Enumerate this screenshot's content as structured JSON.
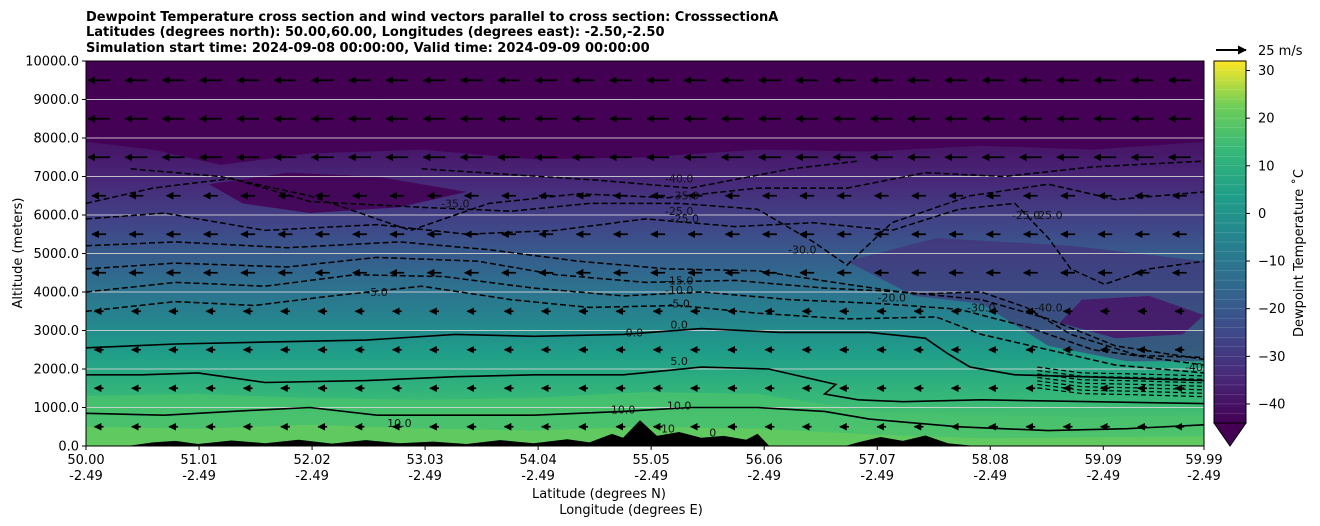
{
  "chart_data": {
    "type": "contour",
    "title_lines": [
      "Dewpoint Temperature cross section and wind vectors parallel to cross section: CrosssectionA",
      "Latitudes (degrees north): 50.00,60.00, Longitudes (degrees east): -2.50,-2.50",
      "Simulation start time: 2024-09-08 00:00:00, Valid time: 2024-09-09 00:00:00"
    ],
    "ylabel": "Altitude (meters)",
    "xlabel_line1": "Latitude (degrees N)",
    "xlabel_line2": "Longitude (degrees E)",
    "ylim": [
      0,
      10000
    ],
    "y_ticks": [
      "0.0",
      "1000.0",
      "2000.0",
      "3000.0",
      "4000.0",
      "5000.0",
      "6000.0",
      "7000.0",
      "8000.0",
      "9000.0",
      "10000.0"
    ],
    "x_range": [
      50.0,
      59.99
    ],
    "x_ticks": [
      {
        "lat": "50.00",
        "lon": "-2.49"
      },
      {
        "lat": "51.01",
        "lon": "-2.49"
      },
      {
        "lat": "52.02",
        "lon": "-2.49"
      },
      {
        "lat": "53.03",
        "lon": "-2.49"
      },
      {
        "lat": "54.04",
        "lon": "-2.49"
      },
      {
        "lat": "55.05",
        "lon": "-2.49"
      },
      {
        "lat": "56.06",
        "lon": "-2.49"
      },
      {
        "lat": "57.07",
        "lon": "-2.49"
      },
      {
        "lat": "58.08",
        "lon": "-2.49"
      },
      {
        "lat": "59.09",
        "lon": "-2.49"
      },
      {
        "lat": "59.99",
        "lon": "-2.49"
      }
    ],
    "grid": "horizontal",
    "colorbar": {
      "label": "Dewpoint Temperature ˚C",
      "range": [
        -44,
        32
      ],
      "ticks": [
        "−40",
        "−30",
        "−20",
        "−10",
        "0",
        "10",
        "20",
        "30"
      ],
      "colormap": "viridis",
      "extend": "min"
    },
    "quiver_key": {
      "label": "25 m/s"
    },
    "wind_vector_direction": "toward lower latitude",
    "contour_levels_labeled": [
      {
        "label": "-40.0",
        "lat": 55.3,
        "alt": 6850
      },
      {
        "label": "-35.0",
        "lat": 55.35,
        "alt": 6400
      },
      {
        "label": "-35.0",
        "lat": 53.3,
        "alt": 6200
      },
      {
        "label": "-25.0",
        "lat": 55.3,
        "alt": 6000
      },
      {
        "label": "-25.0",
        "lat": 55.35,
        "alt": 5800
      },
      {
        "label": "-25.0",
        "lat": 58.4,
        "alt": 5900
      },
      {
        "label": "-25.0",
        "lat": 58.6,
        "alt": 5900
      },
      {
        "label": "-30.0",
        "lat": 56.4,
        "alt": 5000
      },
      {
        "label": "-15.0",
        "lat": 55.3,
        "alt": 4200
      },
      {
        "label": "-10.0",
        "lat": 55.3,
        "alt": 3950
      },
      {
        "label": "-5.0",
        "lat": 55.3,
        "alt": 3600
      },
      {
        "label": "-5.0",
        "lat": 52.6,
        "alt": 3900
      },
      {
        "label": "-20.0",
        "lat": 57.2,
        "alt": 3750
      },
      {
        "label": "-30.0",
        "lat": 58.0,
        "alt": 3500
      },
      {
        "label": "-40.0",
        "lat": 58.6,
        "alt": 3500
      },
      {
        "label": "0.0",
        "lat": 55.3,
        "alt": 3050
      },
      {
        "label": "0.0",
        "lat": 54.9,
        "alt": 2850
      },
      {
        "label": "5.0",
        "lat": 55.3,
        "alt": 2100
      },
      {
        "label": "-40",
        "lat": 59.9,
        "alt": 1950
      },
      {
        "label": "10.0",
        "lat": 55.3,
        "alt": 950
      },
      {
        "label": "10.0",
        "lat": 54.8,
        "alt": 850
      },
      {
        "label": "10.0",
        "lat": 52.8,
        "alt": 500
      },
      {
        "label": "10",
        "lat": 55.2,
        "alt": 350
      },
      {
        "label": "0",
        "lat": 55.6,
        "alt": 250
      }
    ],
    "solid_contours": [
      {
        "level": "0.0",
        "points": [
          [
            50.0,
            2550
          ],
          [
            50.8,
            2650
          ],
          [
            51.6,
            2700
          ],
          [
            52.5,
            2750
          ],
          [
            53.3,
            2900
          ],
          [
            54.0,
            2850
          ],
          [
            54.8,
            2900
          ],
          [
            55.5,
            3050
          ],
          [
            56.2,
            2950
          ],
          [
            57.0,
            2950
          ],
          [
            57.5,
            2800
          ],
          [
            57.7,
            2400
          ],
          [
            57.9,
            2050
          ],
          [
            58.3,
            1850
          ],
          [
            58.9,
            1800
          ],
          [
            59.99,
            1700
          ]
        ]
      },
      {
        "level": "5.0",
        "points": [
          [
            50.0,
            1850
          ],
          [
            50.5,
            1850
          ],
          [
            51.0,
            1900
          ],
          [
            51.6,
            1650
          ],
          [
            52.5,
            1700
          ],
          [
            53.3,
            1800
          ],
          [
            54.0,
            1850
          ],
          [
            54.8,
            1850
          ],
          [
            55.5,
            2050
          ],
          [
            56.1,
            2000
          ],
          [
            56.7,
            1600
          ],
          [
            56.6,
            1350
          ],
          [
            56.9,
            1200
          ],
          [
            57.3,
            1150
          ],
          [
            58.0,
            1200
          ],
          [
            59.0,
            1150
          ],
          [
            59.99,
            1100
          ]
        ]
      },
      {
        "level": "10.0",
        "points": [
          [
            50.0,
            850
          ],
          [
            50.7,
            800
          ],
          [
            51.3,
            900
          ],
          [
            52.0,
            1000
          ],
          [
            52.6,
            800
          ],
          [
            53.3,
            800
          ],
          [
            54.0,
            800
          ],
          [
            54.8,
            900
          ],
          [
            55.4,
            1000
          ],
          [
            56.0,
            1000
          ],
          [
            56.6,
            900
          ],
          [
            57.0,
            700
          ],
          [
            57.8,
            500
          ],
          [
            58.6,
            400
          ],
          [
            59.3,
            450
          ],
          [
            59.99,
            550
          ]
        ]
      }
    ],
    "dashed_contours": [
      {
        "level": "-5.0",
        "points": [
          [
            50.0,
            3500
          ],
          [
            50.8,
            3750
          ],
          [
            51.5,
            3650
          ],
          [
            52.2,
            3900
          ],
          [
            53.0,
            4150
          ],
          [
            53.8,
            3800
          ],
          [
            54.5,
            3600
          ],
          [
            55.3,
            3650
          ],
          [
            56.0,
            3450
          ],
          [
            56.8,
            3300
          ],
          [
            57.6,
            3350
          ],
          [
            58.0,
            2900
          ],
          [
            58.6,
            2500
          ],
          [
            59.2,
            2100
          ],
          [
            59.99,
            1900
          ]
        ]
      },
      {
        "level": "-10.0",
        "points": [
          [
            50.0,
            4000
          ],
          [
            50.8,
            4250
          ],
          [
            51.6,
            4150
          ],
          [
            52.4,
            4450
          ],
          [
            53.2,
            4400
          ],
          [
            54.0,
            4100
          ],
          [
            54.8,
            3900
          ],
          [
            55.5,
            4000
          ],
          [
            56.3,
            3800
          ],
          [
            57.1,
            3700
          ],
          [
            57.8,
            3550
          ],
          [
            58.4,
            3100
          ],
          [
            59.0,
            2500
          ],
          [
            59.99,
            2100
          ]
        ]
      },
      {
        "level": "-15.0",
        "points": [
          [
            50.0,
            4600
          ],
          [
            50.8,
            4750
          ],
          [
            51.8,
            4650
          ],
          [
            52.6,
            4900
          ],
          [
            53.5,
            4800
          ],
          [
            54.2,
            4450
          ],
          [
            55.0,
            4250
          ],
          [
            55.8,
            4300
          ],
          [
            56.6,
            4100
          ],
          [
            57.3,
            4000
          ],
          [
            58.0,
            3800
          ],
          [
            58.6,
            3300
          ],
          [
            59.2,
            2600
          ],
          [
            59.99,
            2250
          ]
        ]
      },
      {
        "level": "-20.0",
        "points": [
          [
            50.0,
            5200
          ],
          [
            50.8,
            5300
          ],
          [
            51.8,
            5150
          ],
          [
            52.8,
            5300
          ],
          [
            53.6,
            5100
          ],
          [
            54.4,
            4800
          ],
          [
            55.2,
            4600
          ],
          [
            56.0,
            4550
          ],
          [
            56.8,
            4200
          ],
          [
            57.4,
            3950
          ],
          [
            58.0,
            4000
          ],
          [
            58.4,
            3600
          ],
          [
            58.8,
            2900
          ],
          [
            59.4,
            2350
          ],
          [
            59.99,
            2300
          ]
        ]
      },
      {
        "level": "-25.0",
        "points": [
          [
            50.0,
            5900
          ],
          [
            50.7,
            6050
          ],
          [
            51.6,
            5600
          ],
          [
            52.6,
            5750
          ],
          [
            53.4,
            5500
          ],
          [
            54.2,
            5600
          ],
          [
            55.0,
            5900
          ],
          [
            55.8,
            5700
          ],
          [
            56.5,
            5800
          ],
          [
            57.2,
            5600
          ],
          [
            57.8,
            6150
          ],
          [
            58.3,
            6300
          ],
          [
            58.6,
            5400
          ],
          [
            58.8,
            4600
          ],
          [
            59.1,
            4200
          ],
          [
            59.5,
            4600
          ],
          [
            59.99,
            4800
          ]
        ]
      },
      {
        "level": "-30.0",
        "points": [
          [
            50.0,
            6300
          ],
          [
            50.6,
            6700
          ],
          [
            51.3,
            6950
          ],
          [
            52.0,
            6350
          ],
          [
            53.0,
            6200
          ],
          [
            53.8,
            6100
          ],
          [
            54.5,
            6300
          ],
          [
            55.3,
            6300
          ],
          [
            56.0,
            6150
          ],
          [
            56.5,
            5300
          ],
          [
            56.8,
            4700
          ],
          [
            57.2,
            5800
          ],
          [
            57.9,
            6500
          ],
          [
            58.6,
            6800
          ],
          [
            59.2,
            6400
          ],
          [
            59.99,
            6600
          ]
        ]
      },
      {
        "level": "-35.0",
        "points": [
          [
            50.4,
            7200
          ],
          [
            51.2,
            7000
          ],
          [
            52.0,
            6500
          ],
          [
            52.9,
            5600
          ],
          [
            53.6,
            6300
          ],
          [
            54.4,
            6550
          ],
          [
            55.2,
            6450
          ],
          [
            56.0,
            6700
          ],
          [
            56.8,
            6700
          ],
          [
            57.5,
            7100
          ],
          [
            58.2,
            7000
          ],
          [
            59.0,
            7250
          ],
          [
            59.99,
            7400
          ]
        ]
      },
      {
        "level": "-40.0",
        "points": [
          [
            53.0,
            7200
          ],
          [
            53.8,
            7050
          ],
          [
            54.6,
            6900
          ],
          [
            55.4,
            6700
          ],
          [
            56.3,
            7200
          ],
          [
            56.9,
            7400
          ]
        ]
      }
    ]
  }
}
